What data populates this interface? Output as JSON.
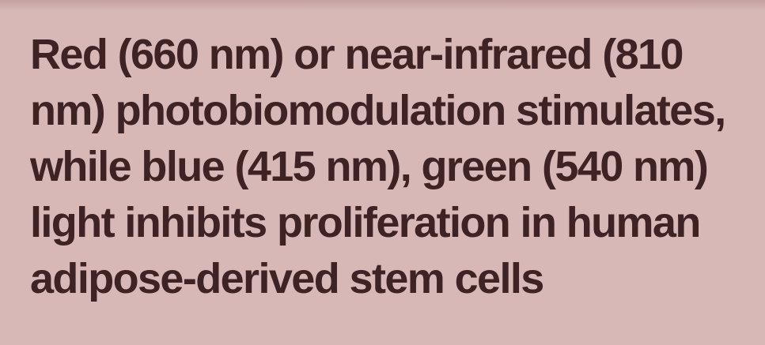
{
  "article": {
    "headline_lines": [
      "Red (660 nm) or near-infrared (810",
      "nm) photobiomodulation stimulates,",
      "while blue (415 nm), green (540 nm)",
      "light inhibits proliferation in human",
      "adipose-derived stem cells"
    ]
  },
  "colors": {
    "background": "#d8b8b7",
    "text": "#3f2324"
  }
}
